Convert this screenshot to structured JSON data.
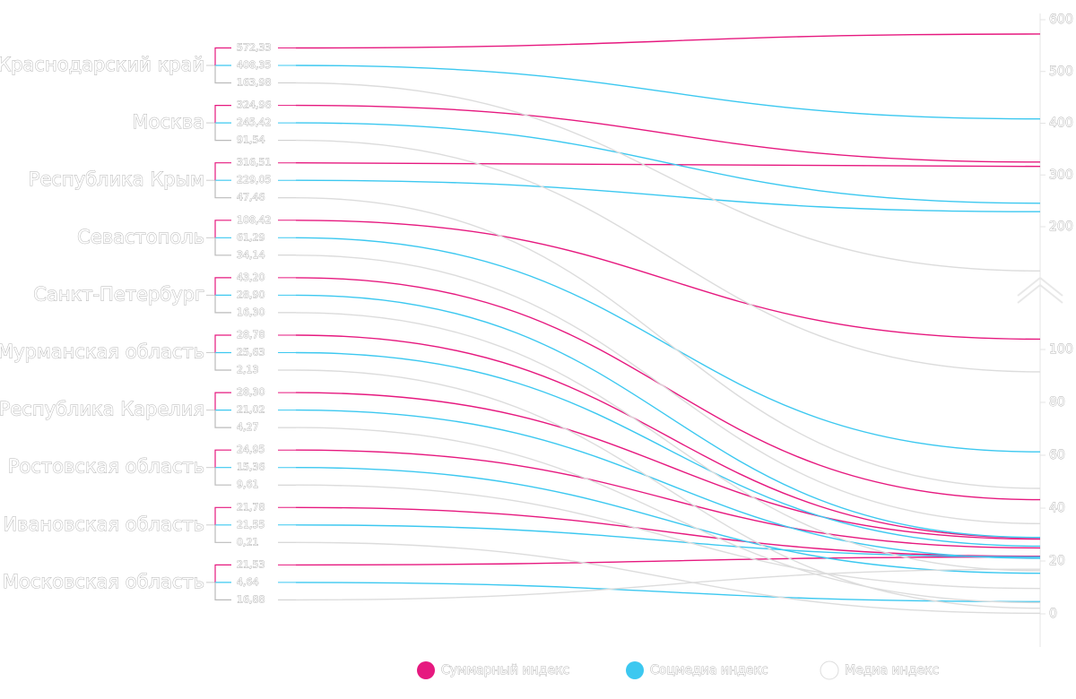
{
  "chart_data": {
    "type": "slope",
    "categories": [
      "Краснодарский край",
      "Москва",
      "Республика Крым",
      "Севастополь",
      "Санкт-Петербург",
      "Мурманская область",
      "Республика Карелия",
      "Ростовская область",
      "Ивановская область",
      "Московская область"
    ],
    "series": [
      {
        "name": "Суммарный индекс",
        "color": "#e6197f",
        "values": [
          572.33,
          324.96,
          316.51,
          108.42,
          43.2,
          28.78,
          28.3,
          24.95,
          21.78,
          21.53
        ],
        "value_labels": [
          "572,33",
          "324,96",
          "316,51",
          "108,42",
          "43,20",
          "28,78",
          "28,30",
          "24,95",
          "21,78",
          "21,53"
        ]
      },
      {
        "name": "Соцмедиа индекс",
        "color": "#3cc8f0",
        "values": [
          408.35,
          245.42,
          229.05,
          61.29,
          28.9,
          25.63,
          21.02,
          15.36,
          21.55,
          4.64
        ],
        "value_labels": [
          "408,35",
          "245,42",
          "229,05",
          "61,29",
          "28,90",
          "25,63",
          "21,02",
          "15,36",
          "21,55",
          "4,64"
        ]
      },
      {
        "name": "Медиа индекс",
        "color": "#d8d8d8",
        "values": [
          163.98,
          91.54,
          47.46,
          34.14,
          16.3,
          2.13,
          4.27,
          9.61,
          0.21,
          16.88
        ],
        "value_labels": [
          "163,98",
          "91,54",
          "47,46",
          "34,14",
          "16,30",
          "2,13",
          "4,27",
          "9,61",
          "0,21",
          "16,88"
        ]
      }
    ],
    "ylim": [
      0,
      600
    ],
    "yticks": [
      0,
      20,
      40,
      60,
      80,
      100,
      200,
      300,
      400,
      500,
      600
    ],
    "axis_break": [
      100,
      200
    ]
  }
}
